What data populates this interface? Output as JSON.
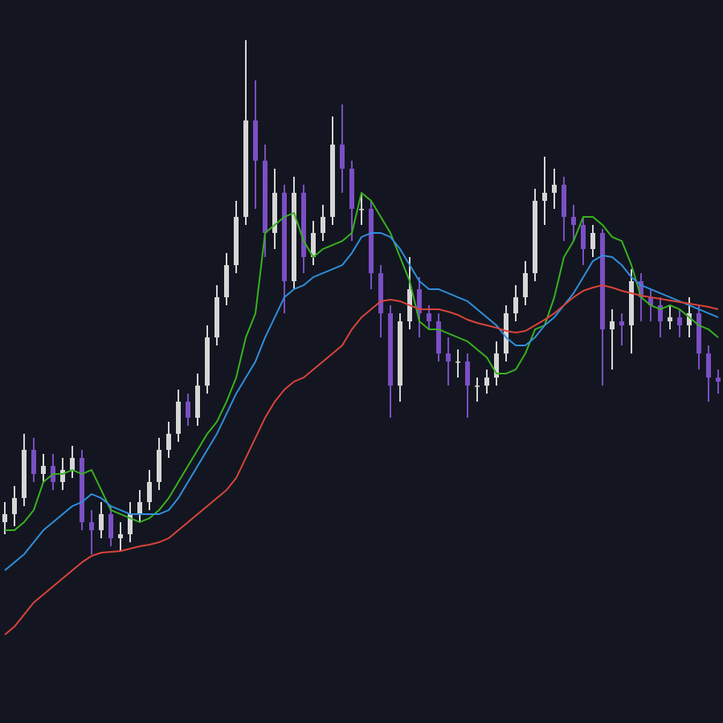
{
  "chart_data": {
    "type": "candlestick",
    "ylim": [
      0,
      900
    ],
    "background": "#131620",
    "up_color": "#d6d6d6",
    "down_color": "#7b4fc4",
    "open": [
      250,
      260,
      280,
      340,
      310,
      320,
      300,
      315,
      330,
      250,
      240,
      260,
      230,
      235,
      260,
      275,
      300,
      340,
      360,
      400,
      380,
      420,
      480,
      530,
      570,
      630,
      750,
      700,
      610,
      660,
      550,
      660,
      580,
      610,
      630,
      720,
      690,
      640,
      640,
      560,
      510,
      420,
      500,
      540,
      510,
      500,
      460,
      450,
      450,
      420,
      420,
      430,
      460,
      510,
      530,
      560,
      650,
      660,
      670,
      630,
      620,
      590,
      610,
      490,
      500,
      495,
      550,
      530,
      520,
      500,
      505,
      495,
      510,
      460,
      430
    ],
    "high": [
      275,
      295,
      360,
      355,
      335,
      335,
      330,
      345,
      340,
      265,
      275,
      270,
      250,
      275,
      290,
      315,
      355,
      375,
      415,
      410,
      435,
      495,
      545,
      585,
      650,
      850,
      800,
      720,
      690,
      670,
      680,
      670,
      625,
      645,
      755,
      770,
      700,
      660,
      650,
      570,
      520,
      510,
      580,
      555,
      520,
      510,
      480,
      465,
      460,
      430,
      440,
      475,
      520,
      545,
      575,
      665,
      705,
      690,
      680,
      645,
      630,
      620,
      615,
      515,
      510,
      565,
      560,
      540,
      530,
      520,
      515,
      530,
      520,
      470,
      440
    ],
    "low": [
      235,
      245,
      270,
      300,
      300,
      290,
      290,
      305,
      240,
      210,
      230,
      220,
      215,
      225,
      250,
      265,
      290,
      330,
      350,
      370,
      370,
      410,
      470,
      520,
      560,
      620,
      640,
      580,
      590,
      510,
      540,
      560,
      570,
      600,
      620,
      660,
      600,
      620,
      540,
      480,
      380,
      400,
      490,
      480,
      490,
      450,
      420,
      430,
      380,
      400,
      410,
      420,
      450,
      500,
      520,
      550,
      620,
      640,
      600,
      600,
      570,
      580,
      420,
      440,
      470,
      460,
      500,
      500,
      480,
      490,
      480,
      480,
      440,
      400,
      410
    ],
    "close": [
      260,
      280,
      340,
      310,
      320,
      300,
      315,
      330,
      250,
      240,
      260,
      230,
      235,
      260,
      275,
      300,
      340,
      360,
      400,
      380,
      420,
      480,
      530,
      570,
      630,
      750,
      700,
      610,
      660,
      550,
      660,
      580,
      610,
      630,
      720,
      690,
      640,
      640,
      560,
      510,
      420,
      500,
      540,
      510,
      500,
      460,
      450,
      450,
      420,
      420,
      430,
      460,
      510,
      530,
      560,
      650,
      660,
      670,
      630,
      620,
      590,
      610,
      490,
      500,
      495,
      550,
      530,
      520,
      500,
      505,
      495,
      510,
      460,
      430,
      425
    ],
    "lines": [
      {
        "color": "#38b21f",
        "values": [
          240,
          240,
          250,
          265,
          300,
          310,
          310,
          315,
          310,
          315,
          290,
          265,
          260,
          255,
          250,
          255,
          265,
          280,
          300,
          320,
          340,
          360,
          375,
          400,
          430,
          480,
          510,
          610,
          620,
          630,
          635,
          600,
          580,
          590,
          595,
          600,
          610,
          660,
          650,
          630,
          610,
          580,
          550,
          500,
          490,
          490,
          485,
          480,
          475,
          465,
          455,
          435,
          435,
          440,
          460,
          490,
          495,
          530,
          580,
          600,
          630,
          630,
          620,
          605,
          600,
          570,
          530,
          520,
          515,
          520,
          515,
          505,
          495,
          490,
          480
        ]
      },
      {
        "color": "#2f8fde",
        "values": [
          190,
          200,
          210,
          225,
          240,
          250,
          260,
          270,
          275,
          285,
          280,
          270,
          265,
          260,
          260,
          260,
          260,
          265,
          280,
          300,
          320,
          340,
          360,
          385,
          410,
          430,
          450,
          480,
          505,
          530,
          540,
          545,
          555,
          560,
          565,
          570,
          585,
          605,
          610,
          610,
          605,
          590,
          570,
          550,
          540,
          540,
          535,
          530,
          525,
          515,
          505,
          495,
          480,
          470,
          470,
          480,
          495,
          505,
          520,
          535,
          555,
          575,
          582,
          580,
          570,
          555,
          545,
          540,
          535,
          530,
          525,
          520,
          515,
          510,
          505
        ]
      },
      {
        "color": "#d9443a",
        "values": [
          110,
          120,
          135,
          150,
          160,
          170,
          180,
          190,
          200,
          208,
          212,
          213,
          214,
          217,
          220,
          222,
          225,
          230,
          240,
          250,
          260,
          270,
          280,
          290,
          305,
          330,
          355,
          380,
          400,
          415,
          425,
          430,
          440,
          450,
          460,
          470,
          490,
          505,
          515,
          525,
          527,
          525,
          520,
          515,
          515,
          515,
          512,
          508,
          502,
          498,
          495,
          492,
          488,
          486,
          488,
          495,
          502,
          510,
          520,
          530,
          538,
          542,
          545,
          542,
          538,
          535,
          532,
          530,
          528,
          526,
          524,
          522,
          520,
          518,
          515
        ]
      }
    ]
  }
}
